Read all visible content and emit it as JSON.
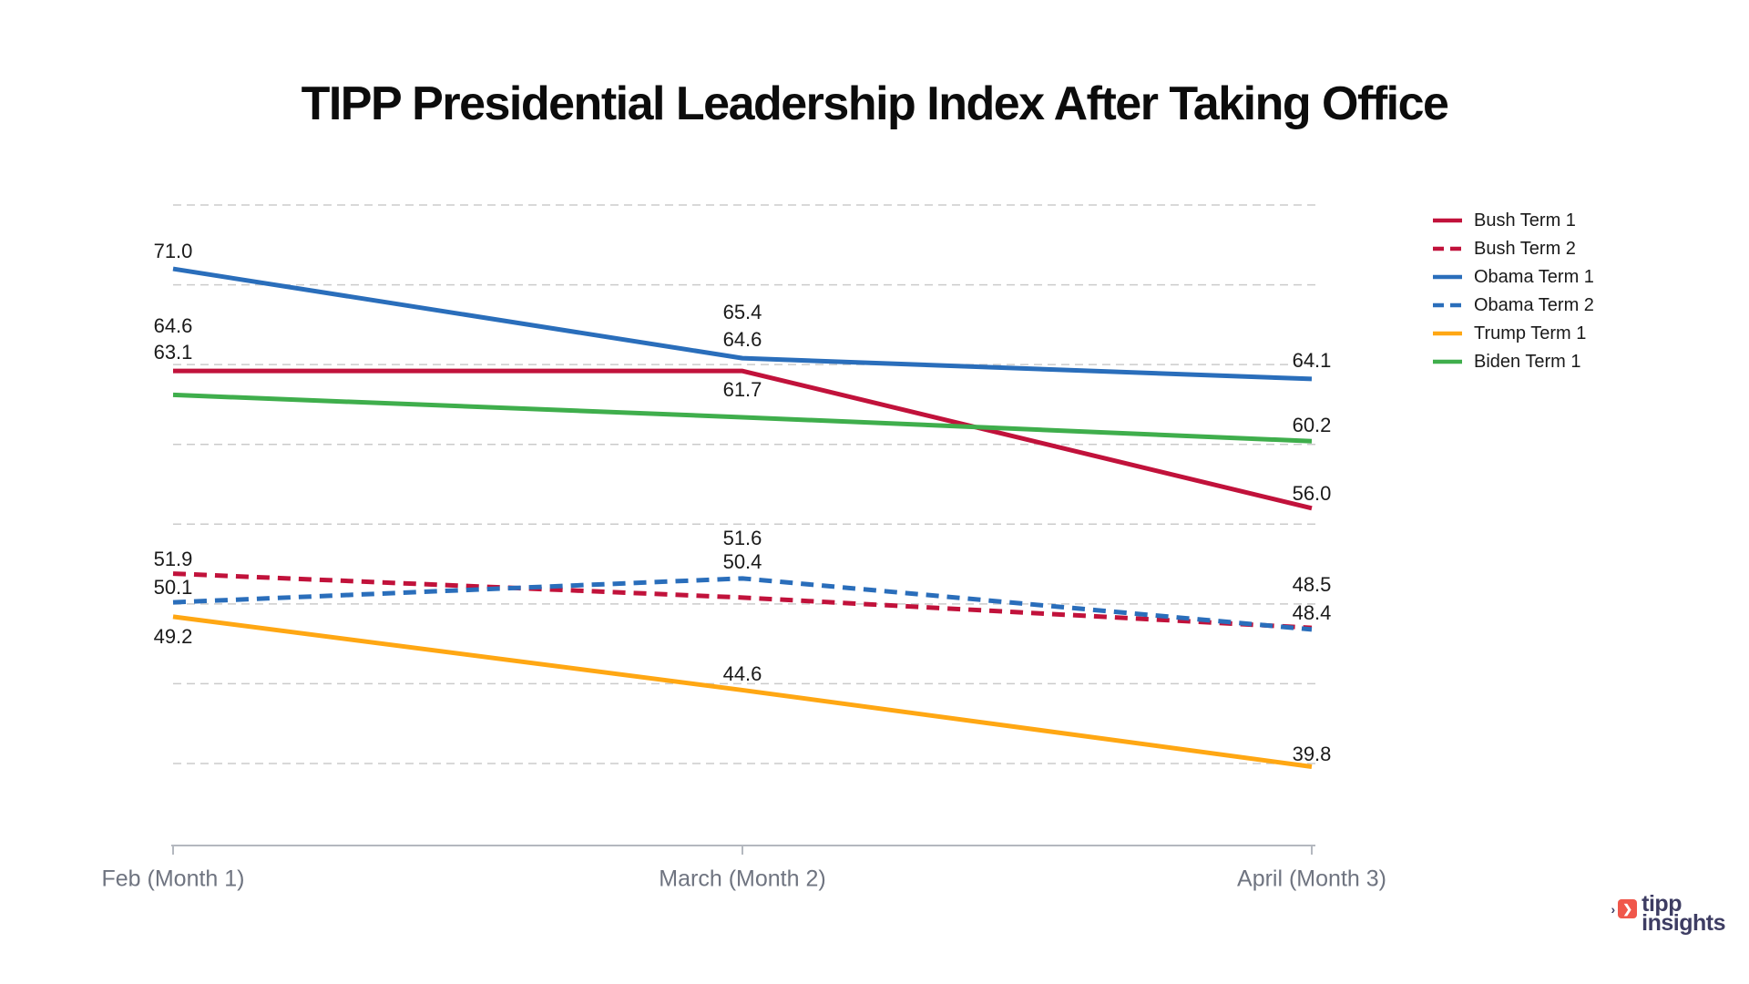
{
  "title": "TIPP Presidential Leadership Index After Taking Office",
  "logo": {
    "word1": "tipp",
    "word2": "insights"
  },
  "colors": {
    "bush_red": "#C1123B",
    "obama_blue": "#2A6EBB",
    "trump_orange": "#FFA713",
    "biden_green": "#3FAE4C",
    "grid_gray": "#CBCBCB",
    "axis_gray": "#B4B8BF",
    "axis_label_gray": "#6F7480",
    "value_label_dark": "#1A1A1A",
    "title_dark": "#0C0C0C",
    "logo_navy": "#3E3D63",
    "logo_coral": "#F0574B"
  },
  "chart_data": {
    "type": "line",
    "title": "TIPP Presidential Leadership Index After Taking Office",
    "x_categories": [
      "Feb (Month 1)",
      "March (Month 2)",
      "April (Month 3)"
    ],
    "series": [
      {
        "name": "Bush Term 1",
        "color": "#C1123B",
        "style": "solid",
        "values": [
          64.6,
          64.6,
          56.0
        ]
      },
      {
        "name": "Bush Term 2",
        "color": "#C1123B",
        "style": "dashed",
        "values": [
          51.9,
          50.4,
          48.5
        ]
      },
      {
        "name": "Obama Term 1",
        "color": "#2A6EBB",
        "style": "solid",
        "values": [
          71.0,
          65.4,
          64.1
        ]
      },
      {
        "name": "Obama Term 2",
        "color": "#2A6EBB",
        "style": "dashed",
        "values": [
          50.1,
          51.6,
          48.4
        ]
      },
      {
        "name": "Trump Term 1",
        "color": "#FFA713",
        "style": "solid",
        "values": [
          49.2,
          44.6,
          39.8
        ]
      },
      {
        "name": "Biden Term 1",
        "color": "#3FAE4C",
        "style": "solid",
        "values": [
          63.1,
          61.7,
          60.2
        ]
      }
    ],
    "gridline_values": [
      40,
      45,
      50,
      55,
      60,
      65,
      70,
      75
    ],
    "ylim": [
      34.9,
      75
    ],
    "grid": true,
    "y_axis_labels_shown": false,
    "legend_position": "top-right",
    "data_labels": true,
    "label_dy": [
      [
        -49,
        -34,
        -16
      ],
      [
        -16,
        -39,
        -47
      ],
      [
        -19,
        -50,
        -20
      ],
      [
        -16,
        -44,
        -18
      ],
      [
        22,
        -17,
        -14
      ],
      [
        -46,
        -30,
        -17
      ]
    ]
  }
}
